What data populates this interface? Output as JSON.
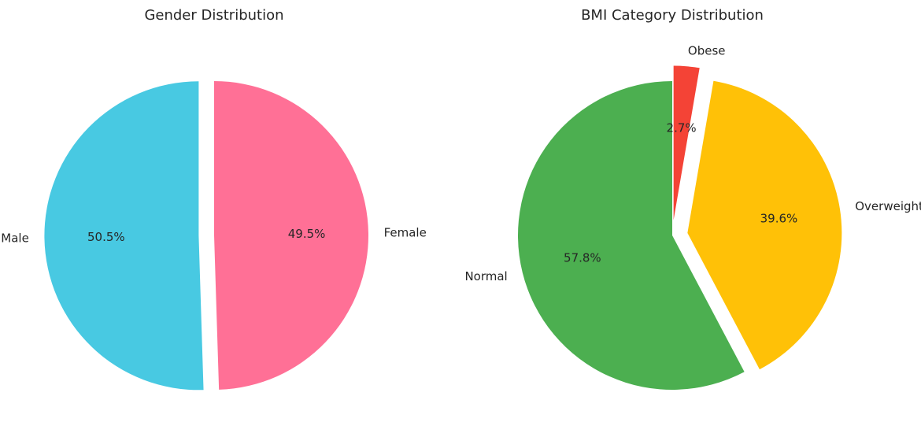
{
  "chart_data": [
    {
      "type": "pie",
      "title": "Gender Distribution",
      "start_angle": 90,
      "direction": "counterclockwise",
      "slices": [
        {
          "label": "Male",
          "value": 50.5,
          "pct_label": "50.5%",
          "color": "#48c9e2",
          "explode": 0.1
        },
        {
          "label": "Female",
          "value": 49.5,
          "pct_label": "49.5%",
          "color": "#ff7096",
          "explode": 0.0
        }
      ]
    },
    {
      "type": "pie",
      "title": "BMI Category Distribution",
      "start_angle": 90,
      "direction": "counterclockwise",
      "slices": [
        {
          "label": "Normal",
          "value": 57.8,
          "pct_label": "57.8%",
          "color": "#4caf50",
          "explode": 0.0
        },
        {
          "label": "Overweight",
          "value": 39.6,
          "pct_label": "39.6%",
          "color": "#ffc107",
          "explode": 0.1
        },
        {
          "label": "Obese",
          "value": 2.7,
          "pct_label": "2.7%",
          "color": "#f44336",
          "explode": 0.1
        }
      ]
    }
  ]
}
